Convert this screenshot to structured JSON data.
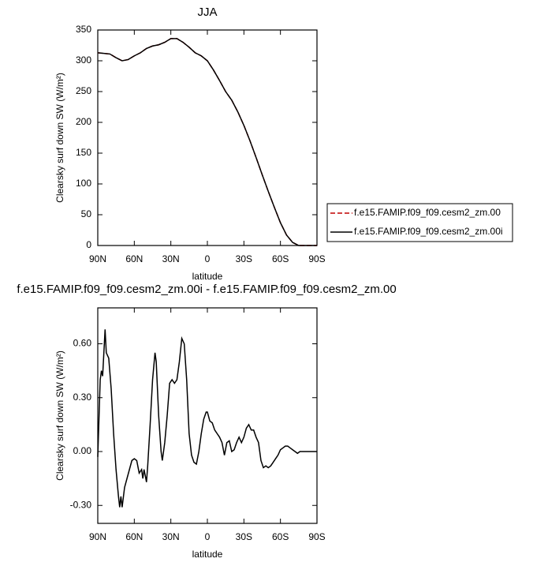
{
  "chart_data": [
    {
      "type": "line",
      "title": "JJA",
      "xlabel": "latitude",
      "ylabel": "Clearsky surf down SW (W/m²)",
      "x": [
        90,
        85,
        80,
        75,
        70,
        65,
        60,
        55,
        50,
        45,
        40,
        35,
        30,
        25,
        20,
        15,
        10,
        5,
        0,
        -5,
        -10,
        -15,
        -20,
        -25,
        -30,
        -35,
        -40,
        -45,
        -50,
        -55,
        -60,
        -65,
        -70,
        -75,
        -80,
        -85,
        -90
      ],
      "series": [
        {
          "name": "f.e15.FAMIP.f09_f09.cesm2_zm.00",
          "color": "#c00000",
          "dash": "dashed",
          "values": [
            313,
            312,
            311,
            305,
            300,
            302,
            308,
            313,
            320,
            324,
            326,
            330,
            336,
            336,
            330,
            322,
            313,
            308,
            300,
            285,
            268,
            250,
            236,
            217,
            195,
            170,
            143,
            115,
            88,
            62,
            37,
            17,
            5,
            0,
            0,
            0,
            0
          ]
        },
        {
          "name": "f.e15.FAMIP.f09_f09.cesm2_zm.00i",
          "color": "#000000",
          "dash": "solid",
          "values": [
            313,
            312,
            311,
            305,
            300,
            302,
            308,
            313,
            320,
            324,
            326,
            330,
            336,
            336,
            330,
            322,
            313,
            308,
            300,
            285,
            268,
            250,
            236,
            217,
            195,
            170,
            143,
            115,
            88,
            62,
            37,
            17,
            5,
            0,
            0,
            0,
            0
          ]
        }
      ],
      "xlim": [
        90,
        -90
      ],
      "xticks": [
        {
          "value": 90,
          "label": "90N"
        },
        {
          "value": 60,
          "label": "60N"
        },
        {
          "value": 30,
          "label": "30N"
        },
        0,
        {
          "value": -30,
          "label": "30S"
        },
        {
          "value": -60,
          "label": "60S"
        },
        {
          "value": -90,
          "label": "90S"
        }
      ],
      "ylim": [
        0,
        350
      ],
      "yticks": [
        0,
        50,
        100,
        150,
        200,
        250,
        300,
        350
      ],
      "legend": "right"
    },
    {
      "type": "line",
      "title": "f.e15.FAMIP.f09_f09.cesm2_zm.00i - f.e15.FAMIP.f09_f09.cesm2_zm.00",
      "xlabel": "latitude",
      "ylabel": "Clearsky surf down SW (W/m²)",
      "x": [
        90,
        88,
        87,
        86,
        85,
        84,
        83,
        81,
        79,
        77,
        75,
        73,
        72,
        71,
        70,
        68,
        66,
        64,
        62,
        60,
        58,
        56,
        54,
        53,
        52,
        50,
        49,
        47,
        45,
        43,
        42,
        40,
        38,
        37,
        35,
        33,
        31,
        29,
        27,
        25,
        23,
        21,
        19,
        17,
        15,
        13,
        11,
        9,
        7,
        5,
        3,
        1,
        0,
        -2,
        -4,
        -6,
        -8,
        -10,
        -12,
        -14,
        -16,
        -18,
        -20,
        -22,
        -24,
        -26,
        -28,
        -30,
        -32,
        -34,
        -36,
        -38,
        -40,
        -42,
        -44,
        -46,
        -48,
        -50,
        -52,
        -54,
        -56,
        -58,
        -60,
        -62,
        -64,
        -66,
        -68,
        -70,
        -72,
        -74,
        -76,
        -80,
        -90
      ],
      "color": "#000000",
      "values": [
        -0.03,
        0.4,
        0.45,
        0.42,
        0.55,
        0.68,
        0.55,
        0.52,
        0.35,
        0.1,
        -0.1,
        -0.25,
        -0.31,
        -0.25,
        -0.31,
        -0.2,
        -0.15,
        -0.1,
        -0.05,
        -0.04,
        -0.05,
        -0.12,
        -0.1,
        -0.15,
        -0.1,
        -0.17,
        -0.08,
        0.15,
        0.4,
        0.55,
        0.5,
        0.2,
        0.0,
        -0.05,
        0.05,
        0.2,
        0.38,
        0.4,
        0.38,
        0.4,
        0.5,
        0.63,
        0.6,
        0.4,
        0.1,
        -0.02,
        -0.06,
        -0.07,
        0.0,
        0.1,
        0.18,
        0.22,
        0.22,
        0.17,
        0.16,
        0.12,
        0.1,
        0.08,
        0.05,
        -0.02,
        0.05,
        0.06,
        0.0,
        0.01,
        0.05,
        0.08,
        0.05,
        0.08,
        0.13,
        0.15,
        0.12,
        0.12,
        0.08,
        0.05,
        -0.05,
        -0.09,
        -0.08,
        -0.09,
        -0.08,
        -0.06,
        -0.04,
        -0.02,
        0.01,
        0.02,
        0.03,
        0.03,
        0.02,
        0.01,
        0.0,
        -0.01,
        0.0,
        0.0,
        0.0
      ],
      "xlim": [
        90,
        -90
      ],
      "xticks": [
        {
          "value": 90,
          "label": "90N"
        },
        {
          "value": 60,
          "label": "60N"
        },
        {
          "value": 30,
          "label": "30N"
        },
        0,
        {
          "value": -30,
          "label": "30S"
        },
        {
          "value": -60,
          "label": "60S"
        },
        {
          "value": -90,
          "label": "90S"
        }
      ],
      "ylim": [
        -0.4,
        0.8
      ],
      "yticks": [
        {
          "value": -0.3,
          "label": "-0.30"
        },
        {
          "value": 0,
          "label": "0.00"
        },
        {
          "value": 0.3,
          "label": "0.30"
        },
        {
          "value": 0.6,
          "label": "0.60"
        }
      ]
    }
  ]
}
